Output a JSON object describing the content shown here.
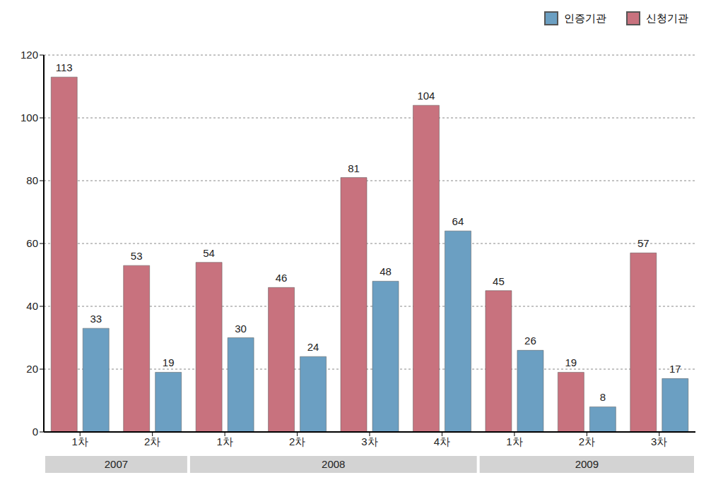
{
  "chart_data": {
    "type": "bar",
    "categories": [
      "1차",
      "2차",
      "1차",
      "2차",
      "3차",
      "4차",
      "1차",
      "2차",
      "3차"
    ],
    "x_groups": [
      {
        "label": "2007",
        "span": 2
      },
      {
        "label": "2008",
        "span": 4
      },
      {
        "label": "2009",
        "span": 3
      }
    ],
    "series": [
      {
        "name": "신청기관",
        "color": "#c8727e",
        "values": [
          113,
          53,
          54,
          46,
          81,
          104,
          45,
          19,
          57
        ]
      },
      {
        "name": "인증기관",
        "color": "#6b9fc2",
        "values": [
          33,
          19,
          30,
          24,
          48,
          64,
          26,
          8,
          17
        ]
      }
    ],
    "ylim": [
      0,
      120
    ],
    "yticks": [
      0,
      20,
      40,
      60,
      80,
      100,
      120
    ],
    "grid": true,
    "legend": "top-right",
    "data_labels": true
  }
}
